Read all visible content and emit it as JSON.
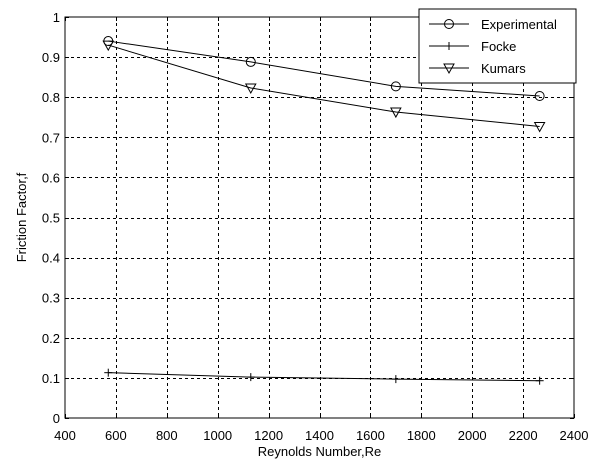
{
  "chart_data": {
    "type": "line",
    "title": "",
    "xlabel": "Reynolds Number,Re",
    "ylabel": "Friction Factor,f",
    "xlim": [
      400,
      2400
    ],
    "ylim": [
      0,
      1
    ],
    "xticks": [
      400,
      600,
      800,
      1000,
      1200,
      1400,
      1600,
      1800,
      2000,
      2200,
      2400
    ],
    "yticks": [
      0,
      0.1,
      0.2,
      0.3,
      0.4,
      0.5,
      0.6,
      0.7,
      0.8,
      0.9,
      1
    ],
    "ytick_labels": [
      "0",
      "0.1",
      "0.2",
      "0.3",
      "0.4",
      "0.5",
      "0.6",
      "0.7",
      "0.8",
      "0.9",
      "1"
    ],
    "grid": true,
    "legend_position": "top-right",
    "series": [
      {
        "name": "Experimental",
        "marker": "circle",
        "x": [
          570,
          1130,
          1700,
          2265
        ],
        "y": [
          0.94,
          0.888,
          0.827,
          0.803
        ]
      },
      {
        "name": "Focke",
        "marker": "plus",
        "x": [
          570,
          1130,
          1700,
          2265
        ],
        "y": [
          0.113,
          0.102,
          0.097,
          0.093
        ]
      },
      {
        "name": "Kumars",
        "marker": "triangle-down",
        "x": [
          570,
          1130,
          1700,
          2265
        ],
        "y": [
          0.93,
          0.823,
          0.763,
          0.727
        ]
      }
    ]
  }
}
